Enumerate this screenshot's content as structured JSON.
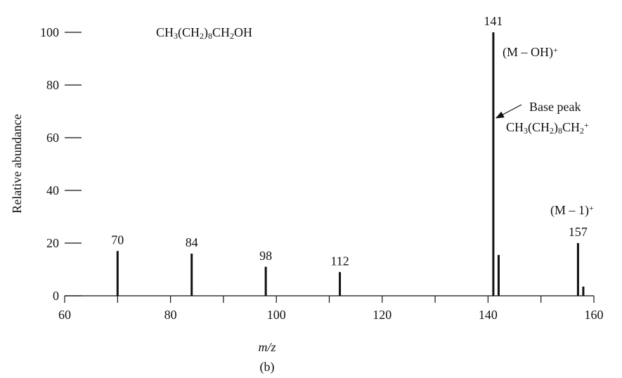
{
  "chart_data": {
    "type": "stick",
    "x_label": "m/z",
    "y_label": "Relative abundance",
    "caption": "(b)",
    "x": [
      70,
      84,
      98,
      112,
      141,
      142,
      157,
      158
    ],
    "values": [
      17,
      16,
      11,
      9,
      100,
      15.5,
      20,
      3.5
    ],
    "labeled": [
      true,
      true,
      true,
      true,
      true,
      false,
      true,
      false
    ],
    "color": "#111111",
    "xlim": [
      60,
      160
    ],
    "xticks": [
      60,
      80,
      100,
      120,
      140,
      160
    ],
    "xminorticks": [
      70,
      90,
      110,
      130,
      150
    ],
    "ylim": [
      0,
      100
    ],
    "yticks": [
      0,
      20,
      40,
      60,
      80,
      100
    ],
    "annotations": {
      "formula": [
        {
          "text": "CH",
          "shift": "none"
        },
        {
          "text": "3",
          "shift": "sub"
        },
        {
          "text": "(CH",
          "shift": "none"
        },
        {
          "text": "2",
          "shift": "sub"
        },
        {
          "text": ")",
          "shift": "none"
        },
        {
          "text": "8",
          "shift": "sub"
        },
        {
          "text": "CH",
          "shift": "none"
        },
        {
          "text": "2",
          "shift": "sub"
        },
        {
          "text": "OH",
          "shift": "none"
        }
      ],
      "m_minus_oh": [
        {
          "text": "(M – OH)",
          "shift": "none"
        },
        {
          "text": "+",
          "shift": "super"
        }
      ],
      "base_peak": [
        {
          "text": "Base peak",
          "shift": "none"
        }
      ],
      "cation": [
        {
          "text": "CH",
          "shift": "none"
        },
        {
          "text": "3",
          "shift": "sub"
        },
        {
          "text": "(CH",
          "shift": "none"
        },
        {
          "text": "2",
          "shift": "sub"
        },
        {
          "text": ")",
          "shift": "none"
        },
        {
          "text": "8",
          "shift": "sub"
        },
        {
          "text": "CH",
          "shift": "none"
        },
        {
          "text": "2",
          "shift": "sub"
        },
        {
          "text": "+",
          "shift": "super"
        }
      ],
      "m_minus_1": [
        {
          "text": "(M – 1)",
          "shift": "none"
        },
        {
          "text": "+",
          "shift": "super"
        }
      ]
    }
  }
}
